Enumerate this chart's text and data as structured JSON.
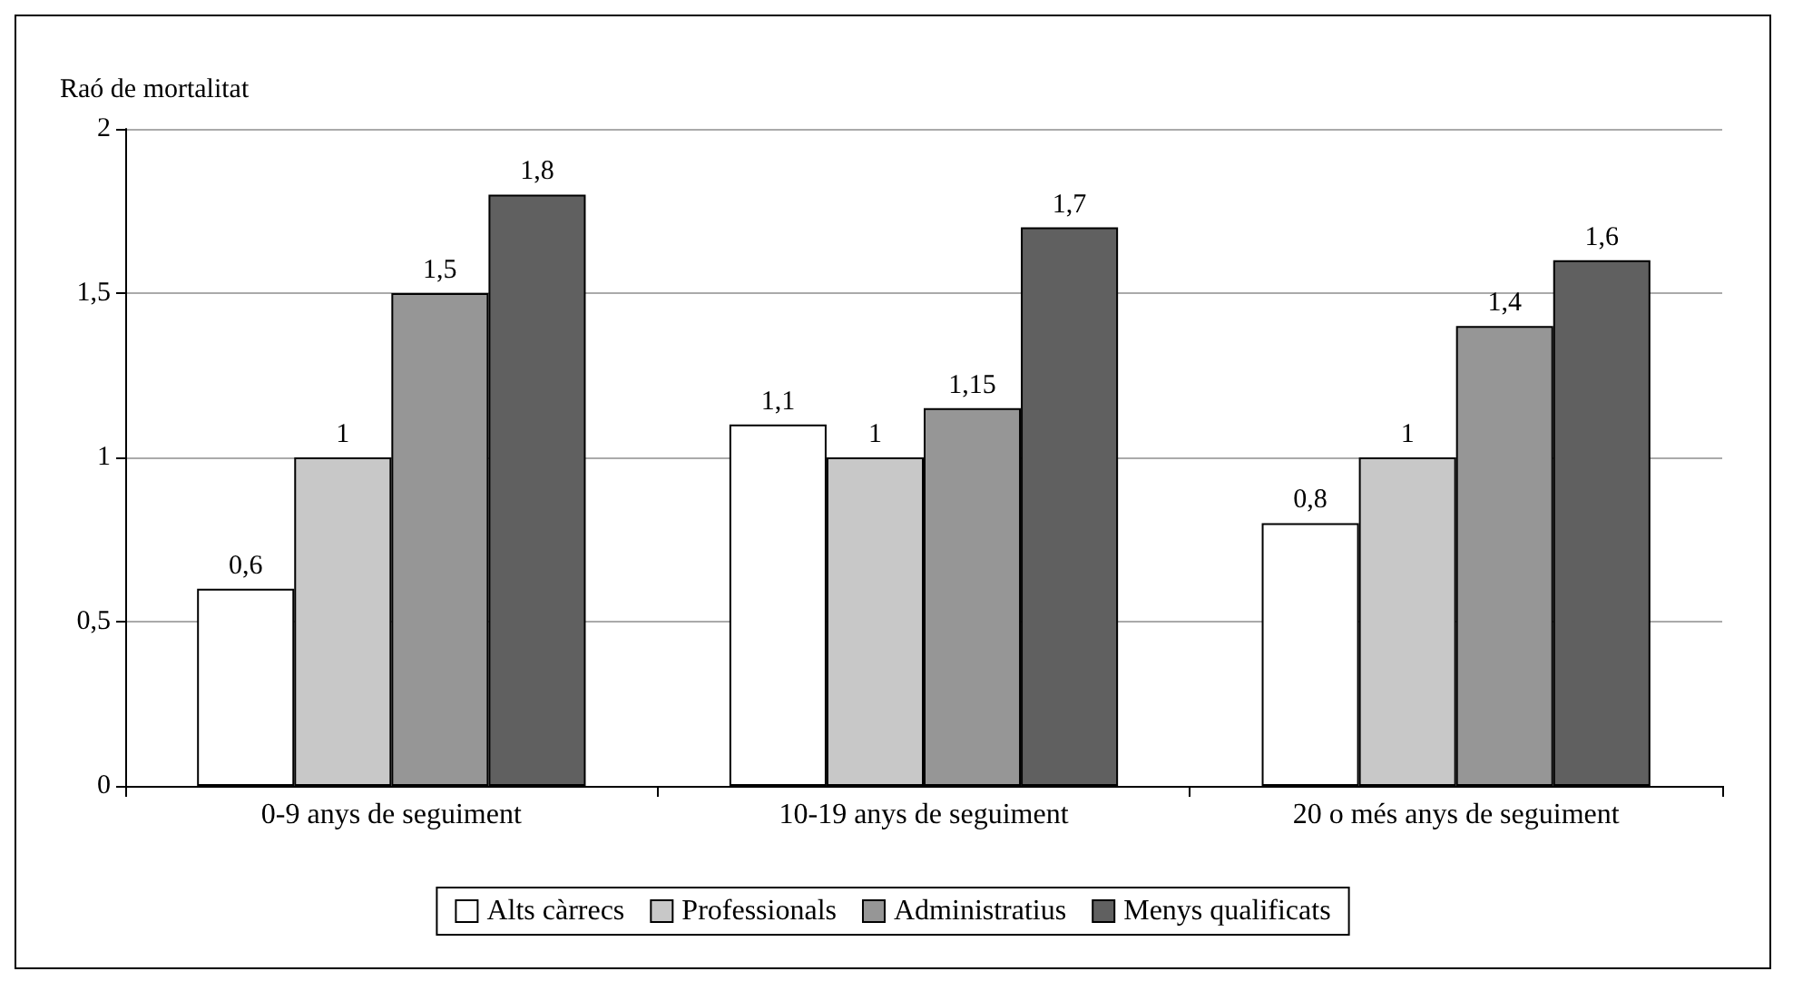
{
  "chart_data": {
    "type": "bar",
    "ylabel": "Raó de mortalitat",
    "categories": [
      "0-9 anys de seguiment",
      "10-19 anys de seguiment",
      "20 o més anys de seguiment"
    ],
    "series": [
      {
        "name": "Alts càrrecs",
        "color": "#ffffff",
        "values": [
          0.6,
          1.1,
          0.8
        ],
        "value_labels": [
          "0,6",
          "1,1",
          "0,8"
        ]
      },
      {
        "name": "Professionals",
        "color": "#c8c8c8",
        "values": [
          1,
          1,
          1
        ],
        "value_labels": [
          "1",
          "1",
          "1"
        ]
      },
      {
        "name": "Administratius",
        "color": "#969696",
        "values": [
          1.5,
          1.15,
          1.4
        ],
        "value_labels": [
          "1,5",
          "1,15",
          "1,4"
        ]
      },
      {
        "name": "Menys qualificats",
        "color": "#606060",
        "values": [
          1.8,
          1.7,
          1.6
        ],
        "value_labels": [
          "1,8",
          "1,7",
          "1,6"
        ]
      }
    ],
    "ylim": [
      0,
      2
    ],
    "yticks": [
      0,
      {
        "value": 0.5,
        "label": "0,5"
      },
      1,
      {
        "value": 1.5,
        "label": "1,5"
      },
      2
    ],
    "grid": "y",
    "legend": "bottom"
  }
}
